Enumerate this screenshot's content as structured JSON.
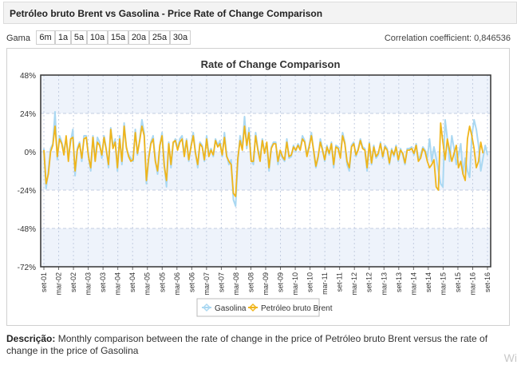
{
  "header": {
    "title": "Petróleo bruto Brent vs Gasolina - Price Rate of Change Comparison"
  },
  "range": {
    "label": "Gama",
    "buttons": [
      "6m",
      "1a",
      "5a",
      "10a",
      "15a",
      "20a",
      "25a",
      "30a"
    ]
  },
  "correlation": {
    "text": "Correlation coefficient: 0,846536"
  },
  "description": {
    "label": "Descrição:",
    "text": "Monthly comparison between the rate of change in the price of Petróleo bruto Brent versus the rate of change in the price of Gasolina"
  },
  "watermark": {
    "text": "Wi"
  },
  "colors": {
    "gasolina": "#aad8f2",
    "brent": "#f0b51b",
    "band": "#eef3fb",
    "grid": "#c3cde0"
  },
  "chart_data": {
    "type": "line",
    "title": "Rate of Change Comparison",
    "xlabel": "",
    "ylabel": "",
    "ylim": [
      -72,
      48
    ],
    "yticks": [
      "48%",
      "24%",
      "0%",
      "-24%",
      "-48%",
      "-72%"
    ],
    "ytick_values": [
      48,
      24,
      0,
      -24,
      -48,
      -72
    ],
    "xticks": [
      "set-01",
      "mar-02",
      "set-02",
      "mar-03",
      "set-03",
      "mar-04",
      "set-04",
      "mar-05",
      "set-05",
      "mar-06",
      "set-06",
      "mar-07",
      "set-07",
      "mar-08",
      "set-08",
      "mar-09",
      "set-09",
      "mar-10",
      "set-10",
      "mar-11",
      "set-11",
      "mar-12",
      "set-12",
      "mar-13",
      "set-13",
      "mar-14",
      "set-14",
      "mar-15",
      "set-15",
      "mar-16",
      "set-16"
    ],
    "legend": [
      "Gasolina",
      "Petróleo bruto Brent"
    ],
    "series": [
      {
        "name": "Gasolina",
        "values": [
          2,
          -23,
          -12,
          2,
          5,
          25,
          -5,
          10,
          6,
          0,
          8,
          -3,
          6,
          14,
          -15,
          2,
          6,
          -6,
          10,
          10,
          -2,
          -12,
          10,
          -5,
          9,
          6,
          -4,
          10,
          2,
          -10,
          15,
          3,
          8,
          -12,
          10,
          -8,
          18,
          2,
          -2,
          -4,
          -6,
          14,
          -2,
          8,
          20,
          12,
          -20,
          -5,
          6,
          10,
          -5,
          -14,
          3,
          12,
          -8,
          -22,
          6,
          -10,
          5,
          8,
          2,
          8,
          10,
          -2,
          8,
          -6,
          4,
          12,
          0,
          -10,
          6,
          4,
          -6,
          10,
          -2,
          2,
          -3,
          8,
          4,
          7,
          -3,
          12,
          -2,
          -8,
          -5,
          -30,
          -34,
          -6,
          10,
          2,
          22,
          2,
          15,
          -5,
          -8,
          12,
          2,
          -4,
          8,
          0,
          5,
          -12,
          3,
          6,
          6,
          -8,
          0,
          -4,
          -6,
          8,
          -4,
          -3,
          4,
          0,
          5,
          2,
          10,
          7,
          -2,
          4,
          12,
          0,
          -10,
          -4,
          8,
          2,
          -6,
          4,
          -2,
          6,
          -10,
          4,
          3,
          -3,
          12,
          6,
          -8,
          -12,
          4,
          6,
          -3,
          2,
          8,
          3,
          2,
          -12,
          6,
          -8,
          4,
          -4,
          -2,
          6,
          -4,
          4,
          2,
          -8,
          2,
          -3,
          4,
          -6,
          2,
          -2,
          -8,
          2,
          2,
          3,
          -2,
          5,
          -5,
          -2,
          3,
          1,
          -4,
          8,
          -6,
          3,
          -4,
          -12,
          -20,
          -22,
          20,
          8,
          -6,
          10,
          2,
          -8,
          -2,
          5,
          -14,
          -4,
          -12,
          -16,
          10,
          20,
          14,
          4,
          -12,
          -4,
          4,
          -2
        ]
      },
      {
        "name": "Petróleo bruto Brent",
        "values": [
          1,
          -20,
          -14,
          0,
          4,
          16,
          -3,
          8,
          5,
          -2,
          10,
          -6,
          8,
          9,
          -12,
          1,
          5,
          -4,
          8,
          9,
          -3,
          -10,
          9,
          -6,
          6,
          4,
          -2,
          9,
          1,
          -8,
          14,
          2,
          6,
          -10,
          8,
          -6,
          16,
          3,
          -3,
          -6,
          -5,
          12,
          -1,
          7,
          16,
          10,
          -18,
          -4,
          5,
          8,
          -6,
          -12,
          4,
          10,
          -9,
          -18,
          5,
          -8,
          6,
          7,
          1,
          6,
          8,
          -3,
          7,
          -5,
          3,
          10,
          -1,
          -8,
          5,
          3,
          -5,
          8,
          -3,
          1,
          -2,
          7,
          3,
          5,
          -2,
          9,
          -3,
          -6,
          -8,
          -26,
          -28,
          -4,
          7,
          1,
          16,
          4,
          12,
          -6,
          -6,
          10,
          1,
          -6,
          7,
          -1,
          6,
          -10,
          2,
          5,
          5,
          -6,
          1,
          -3,
          -5,
          6,
          -3,
          -2,
          3,
          1,
          4,
          1,
          8,
          6,
          -3,
          3,
          10,
          1,
          -9,
          -3,
          6,
          1,
          -5,
          3,
          -1,
          5,
          -8,
          3,
          2,
          -4,
          10,
          5,
          -6,
          -10,
          3,
          5,
          -2,
          1,
          7,
          2,
          1,
          -10,
          5,
          -7,
          3,
          -3,
          -1,
          5,
          -3,
          3,
          1,
          -7,
          1,
          -2,
          3,
          -5,
          1,
          -1,
          -7,
          1,
          1,
          2,
          -1,
          4,
          -6,
          -4,
          2,
          0,
          -6,
          -10,
          -8,
          -5,
          -22,
          -24,
          18,
          6,
          -5,
          8,
          1,
          -6,
          -1,
          4,
          -10,
          -6,
          -14,
          -18,
          8,
          16,
          10,
          2,
          -10,
          -6,
          6,
          -1
        ]
      }
    ]
  }
}
